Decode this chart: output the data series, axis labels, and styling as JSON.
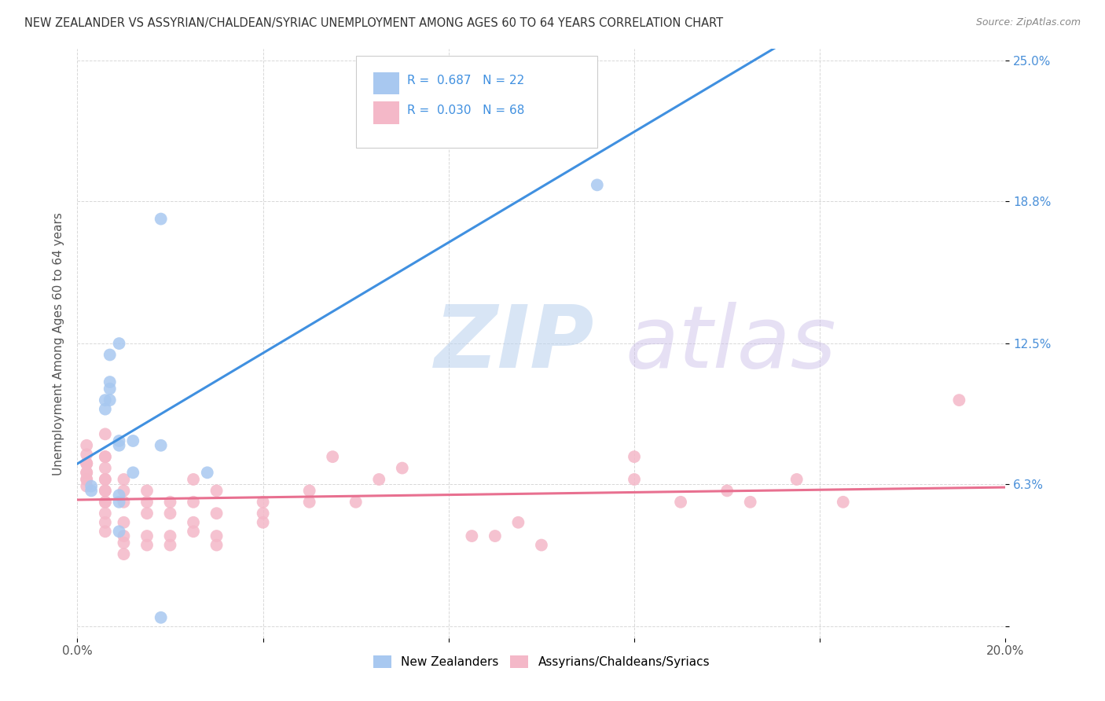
{
  "title": "NEW ZEALANDER VS ASSYRIAN/CHALDEAN/SYRIAC UNEMPLOYMENT AMONG AGES 60 TO 64 YEARS CORRELATION CHART",
  "source": "Source: ZipAtlas.com",
  "ylabel": "Unemployment Among Ages 60 to 64 years",
  "xlim": [
    0.0,
    0.2
  ],
  "ylim": [
    -0.005,
    0.255
  ],
  "xticks": [
    0.0,
    0.04,
    0.08,
    0.12,
    0.16,
    0.2
  ],
  "xticklabels": [
    "0.0%",
    "",
    "",
    "",
    "",
    "20.0%"
  ],
  "ytick_positions": [
    0.0,
    0.063,
    0.125,
    0.188,
    0.25
  ],
  "ytick_labels": [
    "",
    "6.3%",
    "12.5%",
    "18.8%",
    "25.0%"
  ],
  "R_nz": 0.687,
  "N_nz": 22,
  "R_ac": 0.03,
  "N_ac": 68,
  "nz_color": "#a8c8f0",
  "ac_color": "#f4b8c8",
  "nz_line_color": "#4090e0",
  "ac_line_color": "#e87090",
  "nz_scatter_x": [
    0.003,
    0.003,
    0.006,
    0.006,
    0.007,
    0.007,
    0.007,
    0.007,
    0.009,
    0.009,
    0.009,
    0.009,
    0.009,
    0.009,
    0.012,
    0.012,
    0.018,
    0.018,
    0.018,
    0.028,
    0.098,
    0.112
  ],
  "nz_scatter_y": [
    0.062,
    0.06,
    0.096,
    0.1,
    0.1,
    0.105,
    0.108,
    0.12,
    0.125,
    0.082,
    0.08,
    0.058,
    0.055,
    0.042,
    0.068,
    0.082,
    0.08,
    0.18,
    0.004,
    0.068,
    0.22,
    0.195
  ],
  "ac_scatter_x": [
    0.002,
    0.002,
    0.002,
    0.002,
    0.002,
    0.002,
    0.002,
    0.002,
    0.002,
    0.002,
    0.006,
    0.006,
    0.006,
    0.006,
    0.006,
    0.006,
    0.006,
    0.006,
    0.006,
    0.006,
    0.006,
    0.006,
    0.006,
    0.01,
    0.01,
    0.01,
    0.01,
    0.01,
    0.01,
    0.01,
    0.015,
    0.015,
    0.015,
    0.015,
    0.015,
    0.02,
    0.02,
    0.02,
    0.02,
    0.025,
    0.025,
    0.025,
    0.025,
    0.03,
    0.03,
    0.03,
    0.03,
    0.04,
    0.04,
    0.04,
    0.05,
    0.05,
    0.055,
    0.06,
    0.065,
    0.07,
    0.085,
    0.09,
    0.095,
    0.1,
    0.12,
    0.12,
    0.13,
    0.14,
    0.145,
    0.155,
    0.165,
    0.19
  ],
  "ac_scatter_y": [
    0.062,
    0.065,
    0.065,
    0.068,
    0.068,
    0.072,
    0.072,
    0.072,
    0.076,
    0.08,
    0.042,
    0.046,
    0.05,
    0.055,
    0.055,
    0.06,
    0.06,
    0.065,
    0.065,
    0.07,
    0.075,
    0.075,
    0.085,
    0.032,
    0.037,
    0.04,
    0.046,
    0.055,
    0.06,
    0.065,
    0.036,
    0.04,
    0.05,
    0.055,
    0.06,
    0.036,
    0.04,
    0.05,
    0.055,
    0.042,
    0.046,
    0.055,
    0.065,
    0.036,
    0.04,
    0.05,
    0.06,
    0.046,
    0.05,
    0.055,
    0.055,
    0.06,
    0.075,
    0.055,
    0.065,
    0.07,
    0.04,
    0.04,
    0.046,
    0.036,
    0.065,
    0.075,
    0.055,
    0.06,
    0.055,
    0.065,
    0.055,
    0.1
  ],
  "background_color": "#ffffff",
  "grid_color": "#d8d8d8",
  "title_color": "#333333",
  "axis_label_color": "#555555",
  "ytick_color": "#4a90d9",
  "legend_label_nz": "New Zealanders",
  "legend_label_ac": "Assyrians/Chaldeans/Syriacs"
}
